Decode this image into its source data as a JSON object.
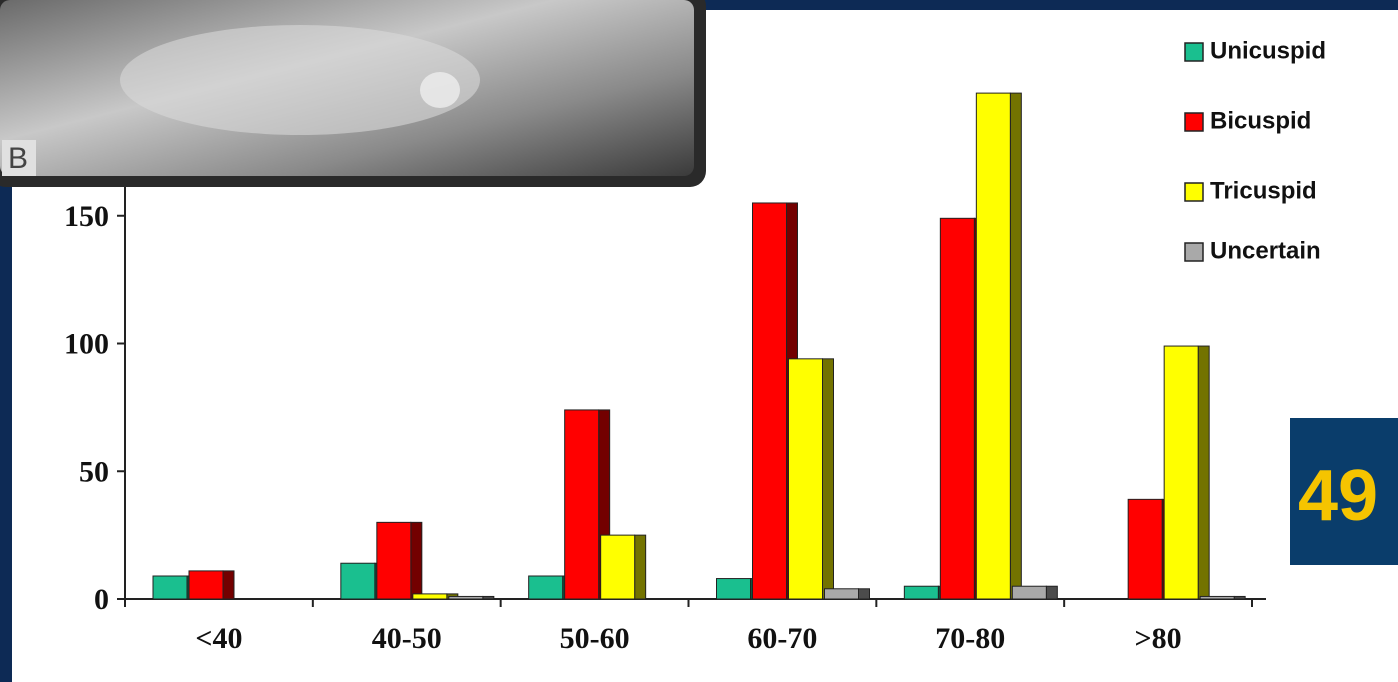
{
  "image_label": "B",
  "badge": "49",
  "chart_data": {
    "type": "bar",
    "categories": [
      "<40",
      "40-50",
      "50-60",
      "60-70",
      "70-80",
      ">80"
    ],
    "series": [
      {
        "name": "Unicuspid",
        "color": "#1abf8f",
        "values": [
          9,
          14,
          9,
          8,
          5,
          0
        ]
      },
      {
        "name": "Bicuspid",
        "color": "#ff0000",
        "values": [
          11,
          30,
          74,
          155,
          149,
          39
        ]
      },
      {
        "name": "Tricuspid",
        "color": "#ffff00",
        "values": [
          0,
          2,
          25,
          94,
          198,
          99
        ]
      },
      {
        "name": "Uncertain",
        "color": "#a9a9a9",
        "values": [
          0,
          1,
          0,
          4,
          5,
          1
        ]
      }
    ],
    "ylim": [
      0,
      200
    ],
    "yticks": [
      0,
      50,
      100,
      150
    ]
  }
}
